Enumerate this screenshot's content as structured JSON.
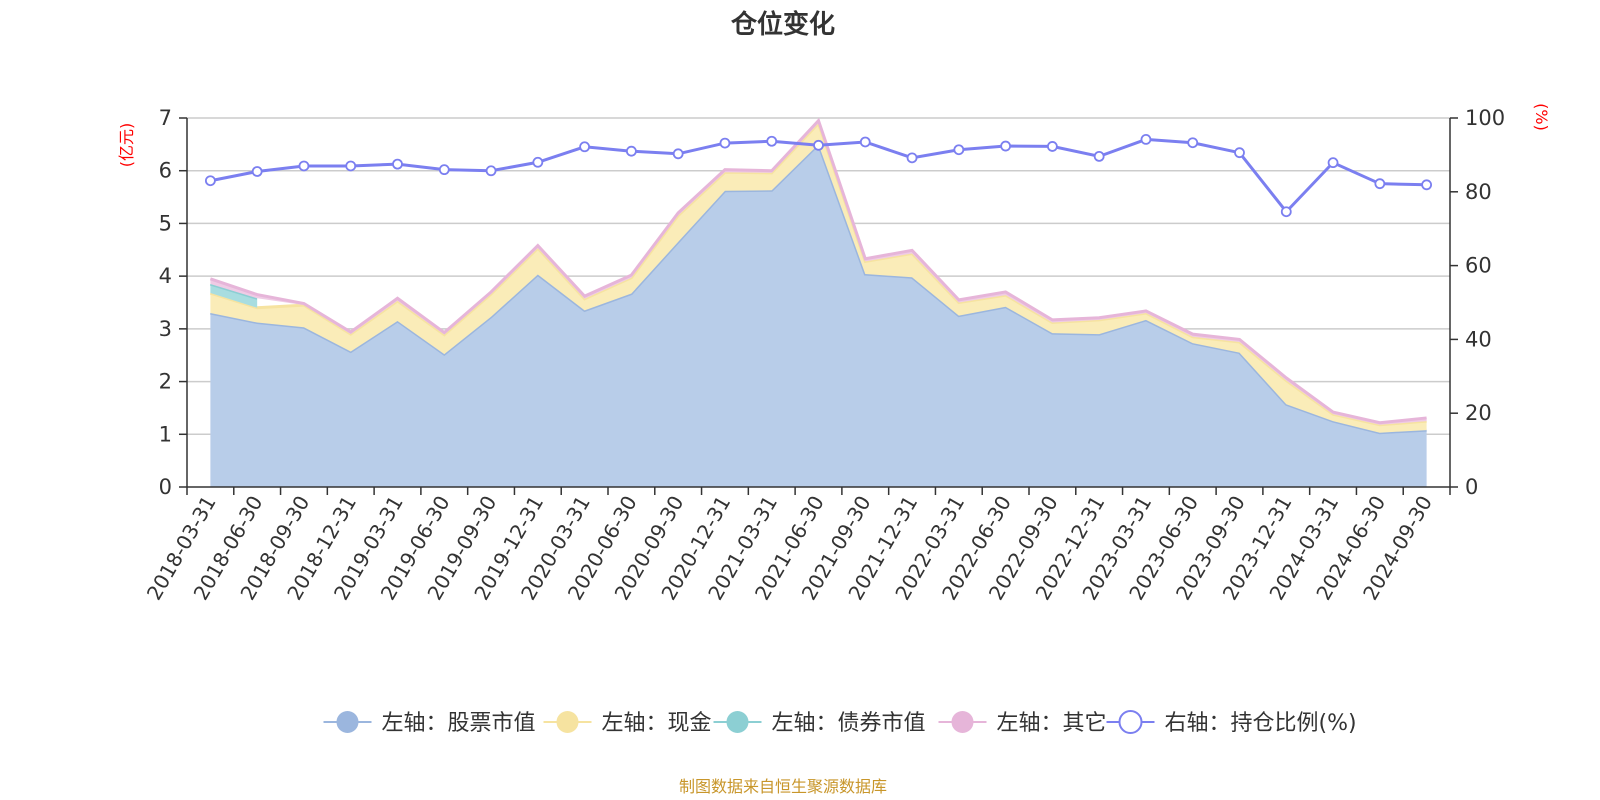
{
  "chart_data": {
    "type": "area",
    "title": "仓位变化",
    "left_axis_unit": "(亿元)",
    "right_axis_unit": "(%)",
    "left_ylim": [
      0,
      7
    ],
    "left_ticks": [
      "0",
      "1",
      "2",
      "3",
      "4",
      "5",
      "6",
      "7"
    ],
    "right_ylim": [
      0,
      100
    ],
    "right_ticks": [
      "0",
      "20",
      "40",
      "60",
      "80",
      "100"
    ],
    "categories": [
      "2018-03-31",
      "2018-06-30",
      "2018-09-30",
      "2018-12-31",
      "2019-03-31",
      "2019-06-30",
      "2019-09-30",
      "2019-12-31",
      "2020-03-31",
      "2020-06-30",
      "2020-09-30",
      "2020-12-31",
      "2021-03-31",
      "2021-06-30",
      "2021-09-30",
      "2021-12-31",
      "2022-03-31",
      "2022-06-30",
      "2022-09-30",
      "2022-12-31",
      "2023-03-31",
      "2023-06-30",
      "2023-09-30",
      "2023-12-31",
      "2024-03-31",
      "2024-06-30",
      "2024-09-30"
    ],
    "series": [
      {
        "name": "左轴：股票市值",
        "axis": "left",
        "stack": true,
        "color": "#9bb6de",
        "fill": "#b8cde9",
        "values": [
          3.3,
          3.12,
          3.03,
          2.57,
          3.15,
          2.52,
          3.23,
          4.03,
          3.35,
          3.67,
          4.65,
          5.62,
          5.63,
          6.5,
          4.04,
          3.98,
          3.25,
          3.42,
          2.92,
          2.9,
          3.17,
          2.73,
          2.55,
          1.57,
          1.25,
          1.03,
          1.08
        ]
      },
      {
        "name": "左轴：现金",
        "axis": "left",
        "stack": true,
        "color": "#f6e3a0",
        "fill": "#faecb8",
        "values": [
          0.38,
          0.28,
          0.42,
          0.33,
          0.38,
          0.37,
          0.43,
          0.5,
          0.22,
          0.3,
          0.5,
          0.35,
          0.33,
          0.4,
          0.24,
          0.45,
          0.25,
          0.22,
          0.2,
          0.27,
          0.13,
          0.12,
          0.2,
          0.45,
          0.13,
          0.15,
          0.17
        ]
      },
      {
        "name": "左轴：债券市值",
        "axis": "left",
        "stack": true,
        "color": "#8ccfd3",
        "fill": "#a8dde0",
        "values": [
          0.17,
          0.18,
          0,
          0,
          0,
          0,
          0,
          0,
          0,
          0,
          0,
          0,
          0,
          0,
          0,
          0,
          0,
          0,
          0,
          0,
          0,
          0,
          0,
          0,
          0,
          0,
          0
        ]
      },
      {
        "name": "左轴：其它",
        "axis": "left",
        "stack": true,
        "color": "#e6b5d9",
        "fill": "#efcbe5",
        "values": [
          0.1,
          0.07,
          0.03,
          0.04,
          0.05,
          0.04,
          0.04,
          0.05,
          0.05,
          0.05,
          0.05,
          0.05,
          0.04,
          0.05,
          0.05,
          0.06,
          0.05,
          0.06,
          0.05,
          0.04,
          0.04,
          0.05,
          0.05,
          0.05,
          0.04,
          0.04,
          0.06
        ]
      },
      {
        "name": "右轴：持仓比例(%)",
        "axis": "right",
        "type": "line",
        "color": "#7b7ff0",
        "values": [
          83.0,
          85.5,
          87.0,
          87.0,
          87.5,
          86.0,
          85.7,
          88.0,
          92.2,
          91.0,
          90.3,
          93.2,
          93.7,
          92.6,
          93.5,
          89.2,
          91.4,
          92.4,
          92.3,
          89.6,
          94.2,
          93.3,
          90.6,
          74.6,
          87.9,
          82.2,
          81.9
        ]
      }
    ],
    "source": "制图数据来自恒生聚源数据库"
  }
}
